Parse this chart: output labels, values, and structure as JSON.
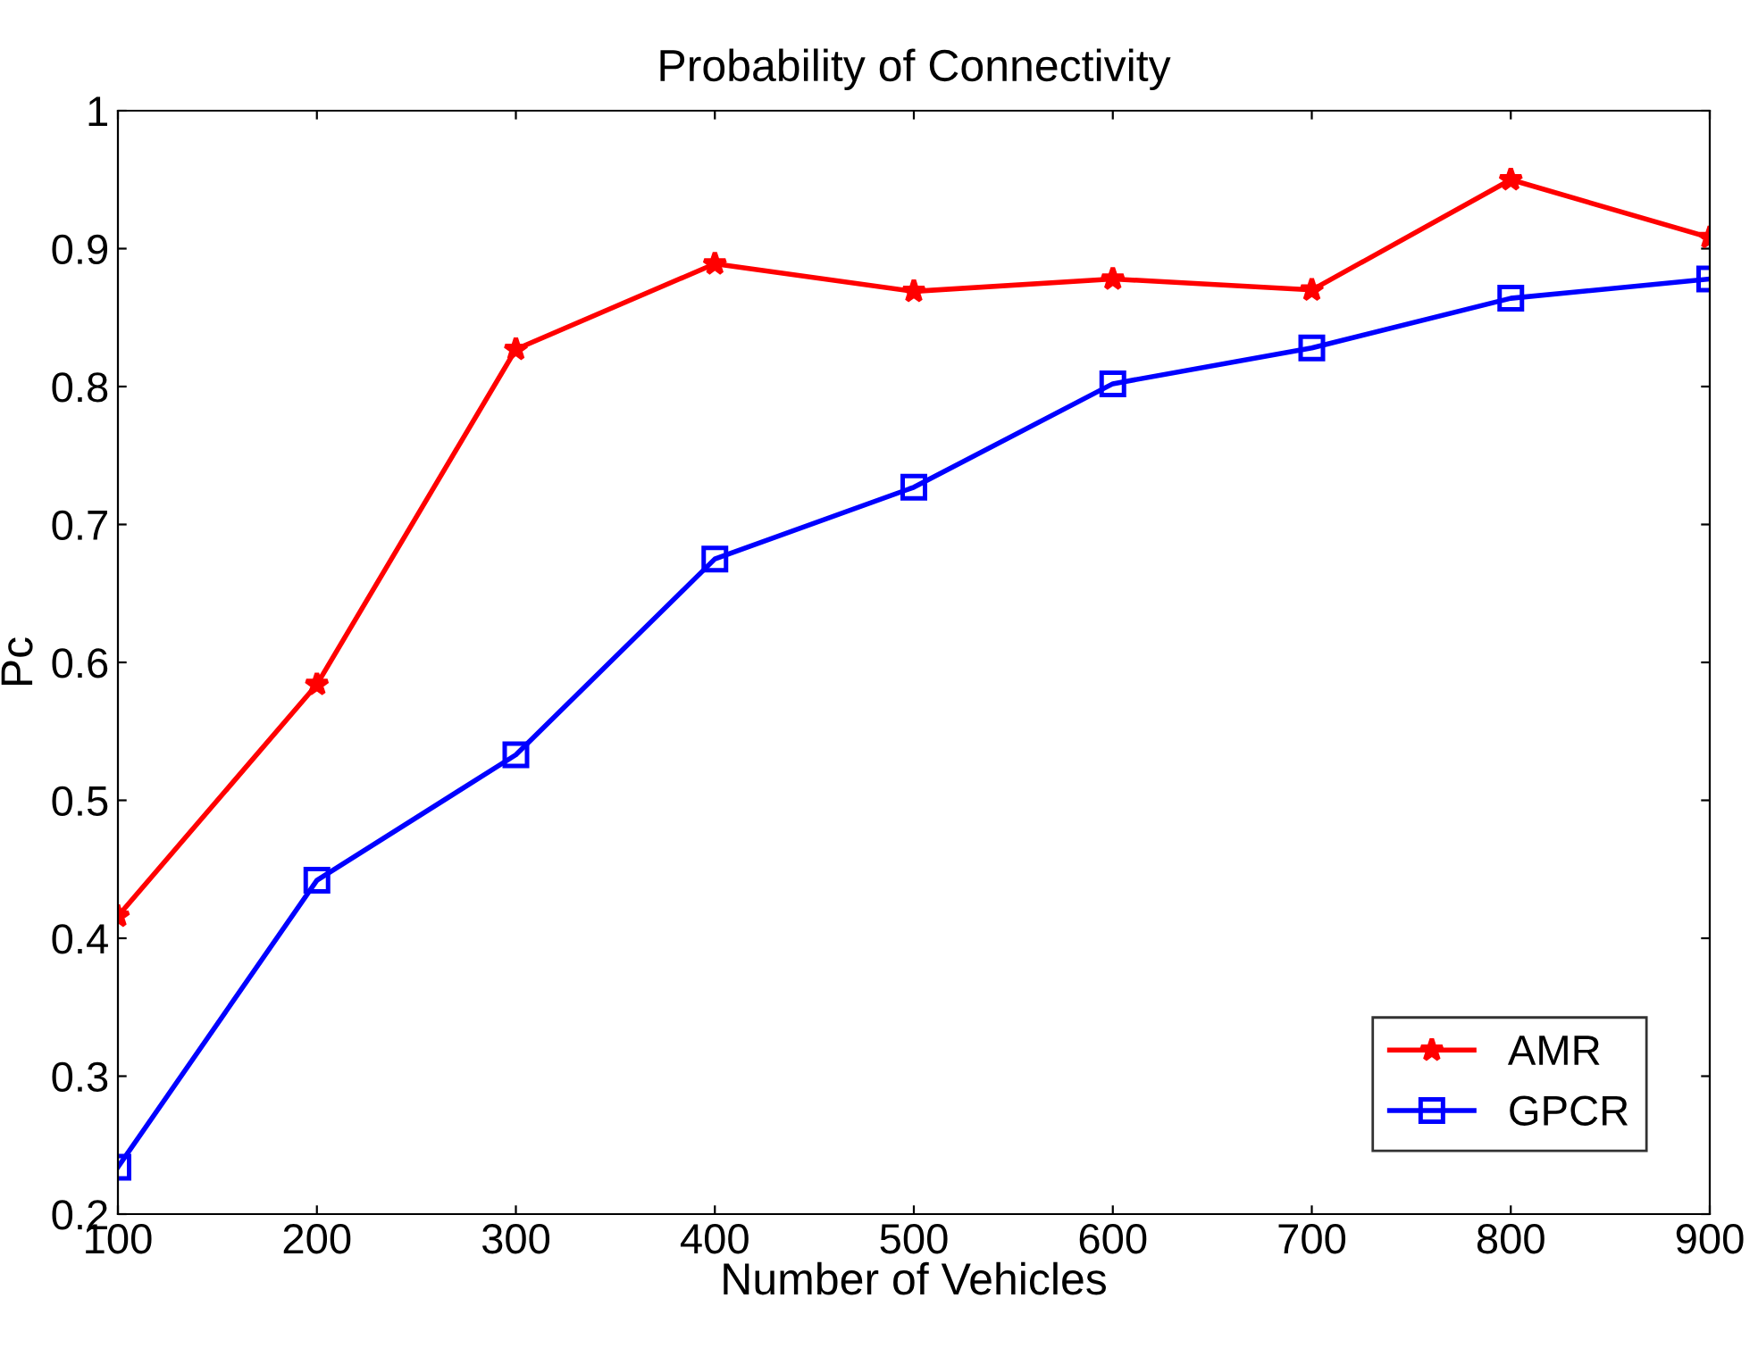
{
  "chart_data": {
    "type": "line",
    "title": "Probability of Connectivity",
    "xlabel": "Number of Vehicles",
    "ylabel": "Pc",
    "x": [
      100,
      200,
      300,
      400,
      500,
      600,
      700,
      800,
      900
    ],
    "series": [
      {
        "name": "AMR",
        "color": "#ff0000",
        "marker": "star",
        "values": [
          0.416,
          0.584,
          0.827,
          0.889,
          0.869,
          0.878,
          0.87,
          0.95,
          0.908
        ]
      },
      {
        "name": "GPCR",
        "color": "#0000ff",
        "marker": "square",
        "values": [
          0.234,
          0.442,
          0.533,
          0.675,
          0.727,
          0.802,
          0.828,
          0.864,
          0.878
        ]
      }
    ],
    "xlim": [
      100,
      900
    ],
    "xticks": [
      100,
      200,
      300,
      400,
      500,
      600,
      700,
      800,
      900
    ],
    "ylim": [
      0.2,
      1
    ],
    "yticks": [
      0.2,
      0.3,
      0.4,
      0.5,
      0.6,
      0.7,
      0.8,
      0.9,
      1
    ],
    "grid": false,
    "legend": "bottom right",
    "line_style": "solid"
  }
}
